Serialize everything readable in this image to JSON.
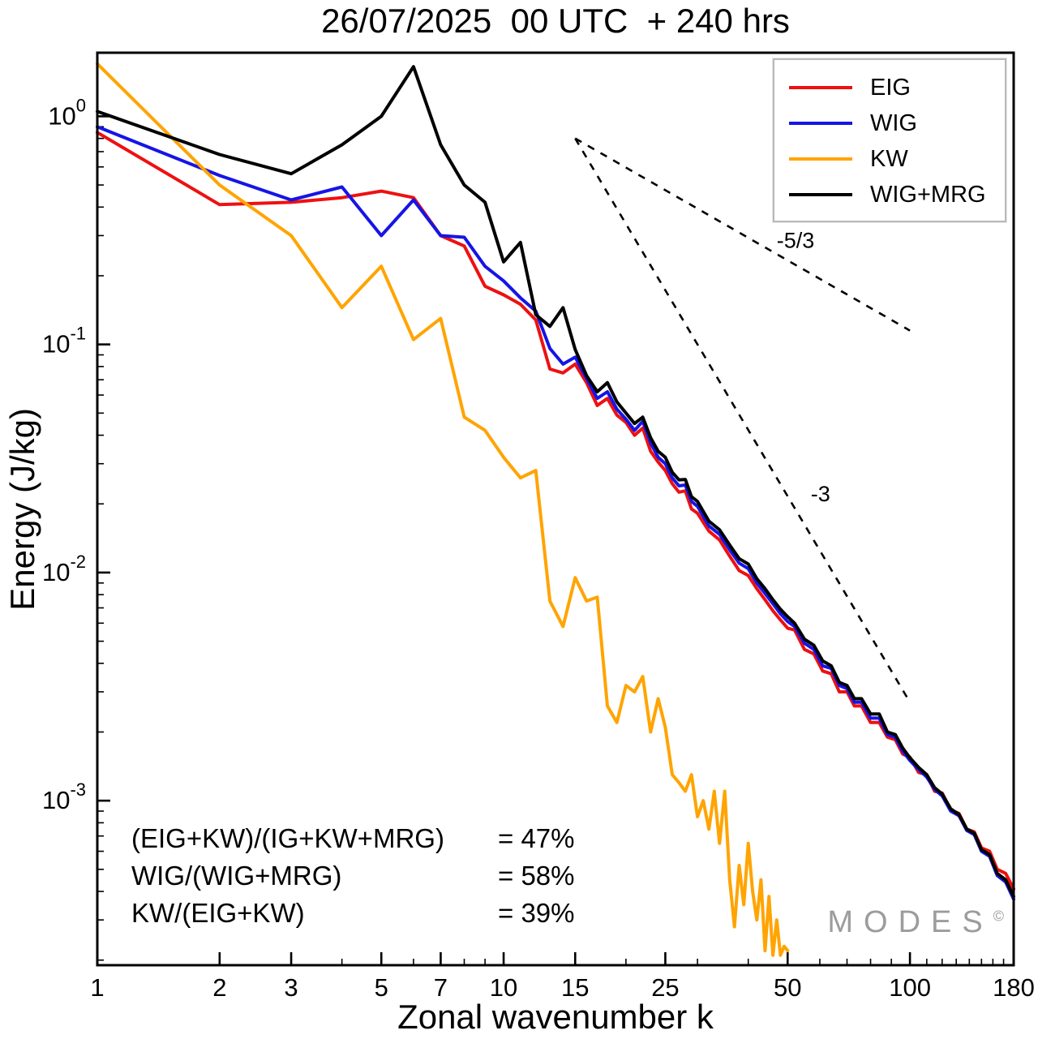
{
  "title": "26/07/2025  00 UTC  + 240 hrs",
  "axes": {
    "x_label": "Zonal wavenumber k",
    "y_label": "Energy (J/kg)"
  },
  "legend": {
    "items": [
      {
        "label": "EIG",
        "color": "#ed1111"
      },
      {
        "label": "WIG",
        "color": "#1515e5"
      },
      {
        "label": "KW",
        "color": "#ffa400"
      },
      {
        "label": "WIG+MRG",
        "color": "#000000"
      }
    ]
  },
  "annotations": {
    "rows": [
      {
        "lhs": "(EIG+KW)/(IG+KW+MRG)",
        "rhs": "= 47%"
      },
      {
        "lhs": "WIG/(WIG+MRG)",
        "rhs": "= 58%"
      },
      {
        "lhs": "KW/(EIG+KW)",
        "rhs": "= 39%"
      }
    ]
  },
  "watermark": {
    "text": "MODES",
    "sup": "©"
  },
  "chart_data": {
    "type": "line",
    "title": "26/07/2025 00 UTC + 240 hrs",
    "xlabel": "Zonal wavenumber k",
    "ylabel": "Energy (J/kg)",
    "x_scale": "log",
    "y_scale": "log",
    "xlim": [
      1,
      180
    ],
    "ylim": [
      0.00019,
      1.9
    ],
    "grid": false,
    "legend_position": "top-right",
    "xticks": {
      "major": [
        1,
        2,
        3,
        5,
        7,
        10,
        15,
        25,
        50,
        100,
        180
      ],
      "minor": [
        4,
        6,
        8,
        9,
        20,
        30,
        40,
        60,
        70,
        80,
        90,
        110,
        120,
        130,
        140,
        150,
        160,
        170
      ]
    },
    "yticks": {
      "major_exponents": [
        0,
        -1,
        -2,
        -3
      ]
    },
    "guides": [
      {
        "label": "-5/3",
        "x": [
          15,
          100
        ],
        "y": [
          0.8,
          0.115
        ],
        "label_x": 47,
        "label_y": 0.265
      },
      {
        "label": "-3",
        "x": [
          15,
          100
        ],
        "y": [
          0.8,
          0.0027
        ],
        "label_x": 57,
        "label_y": 0.0205
      }
    ],
    "series": [
      {
        "name": "EIG",
        "color": "#ed1111",
        "width": 4,
        "x": [
          1,
          2,
          3,
          4,
          5,
          6,
          7,
          8,
          9,
          10,
          11,
          12,
          13,
          14,
          15,
          16,
          17,
          18,
          19,
          20,
          21,
          22,
          23,
          24,
          25,
          26,
          27,
          28,
          29,
          30,
          32,
          34,
          36,
          38,
          40,
          42,
          44,
          46,
          48,
          50,
          52,
          55,
          58,
          61,
          64,
          67,
          70,
          73,
          76,
          80,
          84,
          88,
          92,
          96,
          100,
          105,
          110,
          115,
          120,
          126,
          132,
          138,
          144,
          150,
          157,
          164,
          172,
          180
        ],
        "y": [
          0.85,
          0.41,
          0.42,
          0.44,
          0.47,
          0.44,
          0.3,
          0.27,
          0.18,
          0.165,
          0.15,
          0.128,
          0.078,
          0.075,
          0.082,
          0.068,
          0.054,
          0.058,
          0.049,
          0.0455,
          0.04,
          0.043,
          0.034,
          0.0305,
          0.028,
          0.0245,
          0.0225,
          0.0228,
          0.019,
          0.0182,
          0.0152,
          0.0139,
          0.0118,
          0.0102,
          0.0097,
          0.0085,
          0.0076,
          0.0068,
          0.0062,
          0.0057,
          0.0056,
          0.0046,
          0.0044,
          0.0037,
          0.0036,
          0.003,
          0.003,
          0.0026,
          0.0026,
          0.0022,
          0.0022,
          0.0019,
          0.00185,
          0.0016,
          0.00155,
          0.00133,
          0.0013,
          0.0011,
          0.00108,
          0.00091,
          0.00088,
          0.00075,
          0.00073,
          0.00062,
          0.0006,
          0.0005,
          0.00048,
          0.00041
        ]
      },
      {
        "name": "WIG",
        "color": "#1515e5",
        "width": 4,
        "x": [
          1,
          2,
          3,
          4,
          5,
          6,
          7,
          8,
          9,
          10,
          11,
          12,
          13,
          14,
          15,
          16,
          17,
          18,
          19,
          20,
          21,
          22,
          23,
          24,
          25,
          26,
          27,
          28,
          29,
          30,
          32,
          34,
          36,
          38,
          40,
          42,
          44,
          46,
          48,
          50,
          52,
          55,
          58,
          61,
          64,
          67,
          70,
          73,
          76,
          80,
          84,
          88,
          92,
          96,
          100,
          105,
          110,
          115,
          120,
          126,
          132,
          138,
          144,
          150,
          157,
          164,
          172,
          180
        ],
        "y": [
          0.9,
          0.55,
          0.43,
          0.49,
          0.3,
          0.43,
          0.3,
          0.295,
          0.22,
          0.19,
          0.16,
          0.14,
          0.096,
          0.082,
          0.088,
          0.071,
          0.058,
          0.062,
          0.052,
          0.047,
          0.042,
          0.046,
          0.037,
          0.032,
          0.03,
          0.026,
          0.024,
          0.0242,
          0.0205,
          0.0195,
          0.016,
          0.0147,
          0.0126,
          0.011,
          0.0104,
          0.009,
          0.0081,
          0.0073,
          0.0066,
          0.0061,
          0.0058,
          0.0049,
          0.0046,
          0.0039,
          0.0038,
          0.0032,
          0.0031,
          0.0027,
          0.0027,
          0.0023,
          0.0023,
          0.00195,
          0.0019,
          0.00165,
          0.0015,
          0.00137,
          0.00127,
          0.00112,
          0.00105,
          0.0009,
          0.00086,
          0.00074,
          0.00071,
          0.0006,
          0.00057,
          0.00047,
          0.00044,
          0.00037
        ]
      },
      {
        "name": "KW",
        "color": "#ffa400",
        "width": 4,
        "x": [
          1,
          2,
          3,
          4,
          5,
          6,
          7,
          8,
          9,
          10,
          11,
          12,
          13,
          14,
          15,
          16,
          17,
          18,
          19,
          20,
          21,
          22,
          23,
          24,
          25,
          26,
          27,
          28,
          29,
          30,
          31,
          32,
          33,
          34,
          35,
          36,
          37,
          38,
          39,
          40,
          41,
          42,
          43,
          44,
          45,
          46,
          47,
          48,
          49,
          50
        ],
        "y": [
          1.7,
          0.5,
          0.3,
          0.145,
          0.22,
          0.105,
          0.13,
          0.048,
          0.042,
          0.032,
          0.026,
          0.028,
          0.0075,
          0.0058,
          0.0095,
          0.0075,
          0.0078,
          0.0026,
          0.0022,
          0.0032,
          0.003,
          0.0035,
          0.002,
          0.0028,
          0.0021,
          0.0013,
          0.0012,
          0.0011,
          0.0013,
          0.00085,
          0.001,
          0.00075,
          0.0011,
          0.00065,
          0.0011,
          0.00045,
          0.00028,
          0.00052,
          0.00035,
          0.00065,
          0.0004,
          0.0003,
          0.00045,
          0.00022,
          0.00038,
          0.00021,
          0.0003,
          0.00021,
          0.00023,
          0.00022
        ]
      },
      {
        "name": "WIG+MRG",
        "color": "#000000",
        "width": 4,
        "x": [
          1,
          2,
          3,
          4,
          5,
          6,
          7,
          8,
          9,
          10,
          11,
          12,
          13,
          14,
          15,
          16,
          17,
          18,
          19,
          20,
          21,
          22,
          23,
          24,
          25,
          26,
          27,
          28,
          29,
          30,
          32,
          34,
          36,
          38,
          40,
          42,
          44,
          46,
          48,
          50,
          52,
          55,
          58,
          61,
          64,
          67,
          70,
          73,
          76,
          80,
          84,
          88,
          92,
          96,
          100,
          105,
          110,
          115,
          120,
          126,
          132,
          138,
          144,
          150,
          157,
          164,
          172,
          180
        ],
        "y": [
          1.05,
          0.68,
          0.56,
          0.75,
          1.0,
          1.65,
          0.75,
          0.5,
          0.42,
          0.23,
          0.28,
          0.135,
          0.12,
          0.145,
          0.095,
          0.073,
          0.062,
          0.068,
          0.056,
          0.05,
          0.045,
          0.048,
          0.039,
          0.034,
          0.032,
          0.0275,
          0.0255,
          0.0256,
          0.0215,
          0.0205,
          0.0168,
          0.0154,
          0.0132,
          0.0115,
          0.0109,
          0.0094,
          0.0085,
          0.0076,
          0.0069,
          0.0064,
          0.006,
          0.0051,
          0.0048,
          0.0041,
          0.0039,
          0.0033,
          0.0032,
          0.0028,
          0.0028,
          0.0024,
          0.0024,
          0.002,
          0.00195,
          0.0017,
          0.00154,
          0.0014,
          0.0013,
          0.00114,
          0.00107,
          0.00092,
          0.00087,
          0.00075,
          0.00072,
          0.00061,
          0.00058,
          0.00048,
          0.00045,
          0.00038
        ]
      }
    ]
  }
}
